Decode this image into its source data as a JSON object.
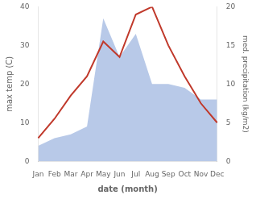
{
  "chart_data": {
    "type": "line",
    "categories": [
      "Jan",
      "Feb",
      "Mar",
      "Apr",
      "May",
      "Jun",
      "Jul",
      "Aug",
      "Sep",
      "Oct",
      "Nov",
      "Dec"
    ],
    "series": [
      {
        "type": "area",
        "color": "#b8c9e8",
        "values": [
          4,
          6,
          7,
          9,
          37,
          27,
          33,
          20,
          20,
          19,
          16,
          16
        ]
      },
      {
        "type": "line",
        "color": "#c0392b",
        "values": [
          6,
          11,
          17,
          22,
          31,
          27,
          38,
          40,
          30,
          22,
          15,
          10
        ]
      }
    ],
    "xlabel": "date (month)",
    "ylabel": "max temp (C)",
    "y2label": "med. precipitation (kg/m2)",
    "ylim": [
      0,
      40
    ],
    "yticks": [
      0,
      10,
      20,
      30,
      40
    ],
    "y2lim": [
      0,
      20
    ],
    "y2ticks": [
      0,
      5,
      10,
      15,
      20
    ],
    "grid": false
  }
}
